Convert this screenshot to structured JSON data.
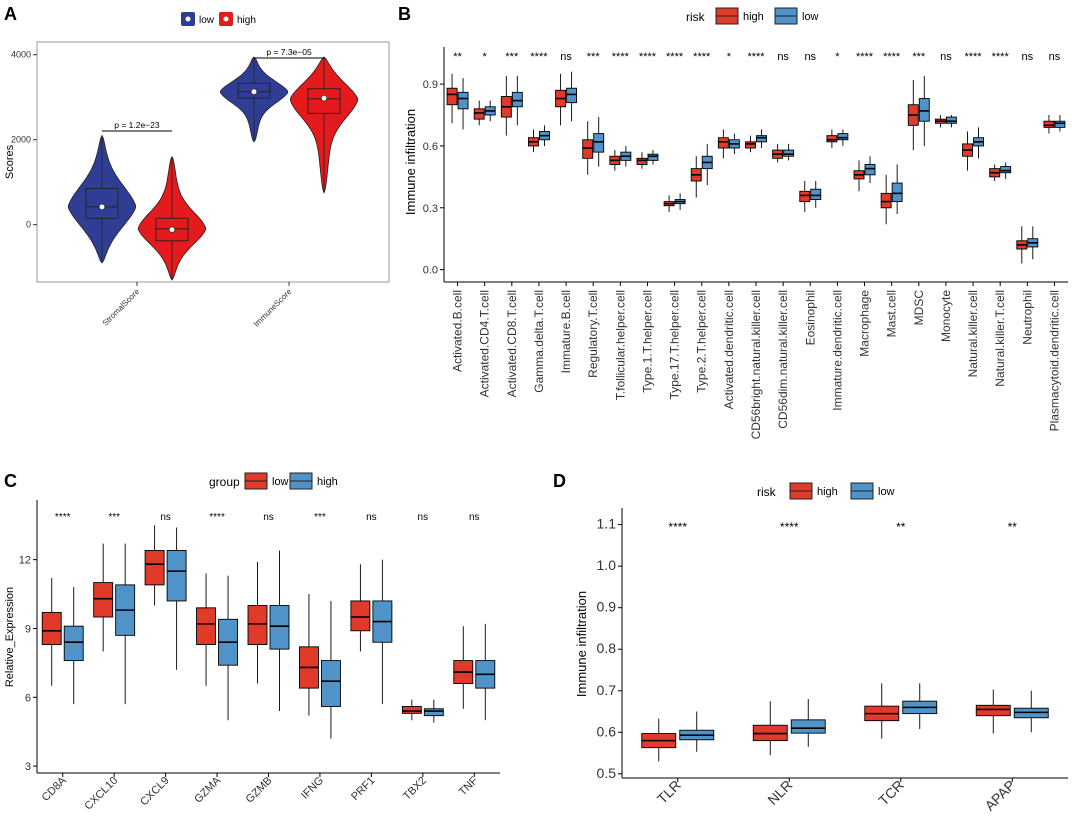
{
  "colors": {
    "violin_low": "#2f3e94",
    "violin_high": "#e41a1c",
    "box_red": "#e03a2b",
    "box_blue": "#4f93c8"
  },
  "panelA": {
    "letter": "A",
    "legend": [
      "low",
      "high"
    ],
    "ylabel": "Scores",
    "ylim": [
      -1350,
      4300
    ],
    "yticks": [
      "0",
      "2000",
      "4000"
    ],
    "categories": [
      "StromalScore",
      "ImmuneScore"
    ],
    "pvalues": [
      "p = 1.2e−23",
      "p = 7.3e−05"
    ],
    "groups": [
      {
        "category": "StromalScore",
        "group": "low",
        "min": -900,
        "q1": 150,
        "median": 420,
        "q3": 850,
        "max": 2100,
        "mean": 420
      },
      {
        "category": "StromalScore",
        "group": "high",
        "min": -1300,
        "q1": -380,
        "median": -100,
        "q3": 150,
        "max": 1600,
        "mean": -120
      },
      {
        "category": "ImmuneScore",
        "group": "low",
        "min": 1950,
        "q1": 2980,
        "median": 3130,
        "q3": 3330,
        "max": 3950,
        "mean": 3130
      },
      {
        "category": "ImmuneScore",
        "group": "high",
        "min": 750,
        "q1": 2620,
        "median": 2960,
        "q3": 3200,
        "max": 3950,
        "mean": 2980
      }
    ]
  },
  "panelB": {
    "letter": "B",
    "legend_title": "risk",
    "legend": [
      "high",
      "low"
    ],
    "ylabel": "Immune infiltration",
    "ylim": [
      -0.06,
      1.08
    ],
    "yticks": [
      "0.0",
      "0.3",
      "0.6",
      "0.9"
    ],
    "categories": [
      "Activated.B.cell",
      "Activated.CD4.T.cell",
      "Activated.CD8.T.cell",
      "Gamma.delta.T.cell",
      "Immature.B.cell",
      "Regulatory.T.cell",
      "T.follicular.helper.cell",
      "Type.1.T.helper.cell",
      "Type.17.T.helper.cell",
      "Type.2.T.helper.cell",
      "Activated.dendritic.cell",
      "CD56bright.natural.killer.cell",
      "CD56dim.natural.killer.cell",
      "Eosinophil",
      "Immature.dendritic.cell",
      "Macrophage",
      "Mast.cell",
      "MDSC",
      "Monocyte",
      "Natural.killer.cell",
      "Natural.killer.T.cell",
      "Neutrophil",
      "Plasmacytoid.dendritic.cell"
    ],
    "significance": [
      "**",
      "*",
      "***",
      "****",
      "ns",
      "***",
      "****",
      "****",
      "****",
      "****",
      "*",
      "****",
      "ns",
      "ns",
      "*",
      "****",
      "****",
      "***",
      "ns",
      "****",
      "****",
      "ns",
      "ns"
    ],
    "series": [
      {
        "name": "high",
        "boxes": [
          [
            0.71,
            0.8,
            0.85,
            0.88,
            0.95
          ],
          [
            0.7,
            0.73,
            0.76,
            0.78,
            0.82
          ],
          [
            0.65,
            0.74,
            0.79,
            0.84,
            0.94
          ],
          [
            0.57,
            0.6,
            0.62,
            0.64,
            0.68
          ],
          [
            0.7,
            0.79,
            0.83,
            0.87,
            0.95
          ],
          [
            0.46,
            0.54,
            0.59,
            0.63,
            0.72
          ],
          [
            0.48,
            0.51,
            0.53,
            0.55,
            0.58
          ],
          [
            0.49,
            0.51,
            0.53,
            0.54,
            0.57
          ],
          [
            0.28,
            0.31,
            0.32,
            0.33,
            0.36
          ],
          [
            0.35,
            0.43,
            0.46,
            0.49,
            0.55
          ],
          [
            0.54,
            0.59,
            0.62,
            0.64,
            0.68
          ],
          [
            0.57,
            0.59,
            0.61,
            0.62,
            0.65
          ],
          [
            0.52,
            0.54,
            0.56,
            0.58,
            0.61
          ],
          [
            0.28,
            0.33,
            0.36,
            0.38,
            0.43
          ],
          [
            0.59,
            0.62,
            0.63,
            0.65,
            0.68
          ],
          [
            0.38,
            0.44,
            0.46,
            0.48,
            0.53
          ],
          [
            0.22,
            0.3,
            0.33,
            0.37,
            0.46
          ],
          [
            0.58,
            0.7,
            0.75,
            0.8,
            0.92
          ],
          [
            0.69,
            0.71,
            0.72,
            0.73,
            0.75
          ],
          [
            0.48,
            0.55,
            0.58,
            0.61,
            0.67
          ],
          [
            0.43,
            0.45,
            0.47,
            0.49,
            0.51
          ],
          [
            0.03,
            0.1,
            0.12,
            0.14,
            0.21
          ],
          [
            0.66,
            0.69,
            0.7,
            0.72,
            0.75
          ]
        ]
      },
      {
        "name": "low",
        "boxes": [
          [
            0.68,
            0.78,
            0.83,
            0.86,
            0.93
          ],
          [
            0.72,
            0.75,
            0.77,
            0.79,
            0.82
          ],
          [
            0.7,
            0.79,
            0.82,
            0.86,
            0.94
          ],
          [
            0.6,
            0.63,
            0.65,
            0.67,
            0.7
          ],
          [
            0.72,
            0.81,
            0.85,
            0.88,
            0.96
          ],
          [
            0.5,
            0.57,
            0.62,
            0.66,
            0.74
          ],
          [
            0.5,
            0.53,
            0.55,
            0.57,
            0.6
          ],
          [
            0.51,
            0.53,
            0.55,
            0.56,
            0.58
          ],
          [
            0.29,
            0.32,
            0.33,
            0.34,
            0.37
          ],
          [
            0.41,
            0.49,
            0.52,
            0.55,
            0.61
          ],
          [
            0.56,
            0.59,
            0.61,
            0.63,
            0.66
          ],
          [
            0.59,
            0.62,
            0.64,
            0.65,
            0.68
          ],
          [
            0.53,
            0.55,
            0.56,
            0.58,
            0.61
          ],
          [
            0.3,
            0.34,
            0.36,
            0.39,
            0.43
          ],
          [
            0.6,
            0.63,
            0.64,
            0.66,
            0.68
          ],
          [
            0.42,
            0.46,
            0.49,
            0.51,
            0.55
          ],
          [
            0.27,
            0.33,
            0.37,
            0.42,
            0.51
          ],
          [
            0.6,
            0.72,
            0.77,
            0.83,
            0.94
          ],
          [
            0.69,
            0.71,
            0.72,
            0.74,
            0.75
          ],
          [
            0.54,
            0.6,
            0.62,
            0.64,
            0.69
          ],
          [
            0.44,
            0.47,
            0.48,
            0.5,
            0.52
          ],
          [
            0.05,
            0.11,
            0.13,
            0.15,
            0.21
          ],
          [
            0.67,
            0.69,
            0.71,
            0.72,
            0.75
          ]
        ]
      }
    ]
  },
  "panelC": {
    "letter": "C",
    "legend_title": "group",
    "legend": [
      "low",
      "high"
    ],
    "ylabel": "Relative_Expression",
    "ylim": [
      2.7,
      14.6
    ],
    "yticks": [
      "3",
      "6",
      "9",
      "12"
    ],
    "categories": [
      "CD8A",
      "CXCL10",
      "CXCL9",
      "GZMA",
      "GZMB",
      "IFNG",
      "PRF1",
      "TBX2",
      "TNF"
    ],
    "significance": [
      "****",
      "***",
      "ns",
      "****",
      "ns",
      "***",
      "ns",
      "ns",
      "ns"
    ],
    "series": [
      {
        "name": "low",
        "boxes": [
          [
            6.5,
            8.3,
            8.9,
            9.7,
            11.2
          ],
          [
            8.0,
            9.5,
            10.3,
            11.0,
            12.7
          ],
          [
            10.0,
            10.9,
            11.8,
            12.4,
            13.5
          ],
          [
            6.5,
            8.3,
            9.2,
            9.9,
            11.4
          ],
          [
            6.6,
            8.3,
            9.2,
            10.0,
            11.9
          ],
          [
            5.2,
            6.4,
            7.3,
            8.2,
            10.5
          ],
          [
            8.0,
            8.9,
            9.5,
            10.2,
            11.8
          ],
          [
            5.0,
            5.3,
            5.4,
            5.6,
            5.9
          ],
          [
            5.5,
            6.6,
            7.1,
            7.6,
            9.1
          ]
        ]
      },
      {
        "name": "high",
        "boxes": [
          [
            5.7,
            7.6,
            8.4,
            9.1,
            10.8
          ],
          [
            5.7,
            8.7,
            9.8,
            10.9,
            12.7
          ],
          [
            7.2,
            10.2,
            11.5,
            12.4,
            13.4
          ],
          [
            5.0,
            7.4,
            8.4,
            9.4,
            11.3
          ],
          [
            5.4,
            8.1,
            9.1,
            10.0,
            12.4
          ],
          [
            4.2,
            5.6,
            6.7,
            7.6,
            10.2
          ],
          [
            5.7,
            8.4,
            9.3,
            10.2,
            12.0
          ],
          [
            4.9,
            5.2,
            5.4,
            5.5,
            5.9
          ],
          [
            5.0,
            6.4,
            7.0,
            7.6,
            9.2
          ]
        ]
      }
    ]
  },
  "panelD": {
    "letter": "D",
    "legend_title": "risk",
    "legend": [
      "high",
      "low"
    ],
    "ylabel": "Immune infiltration",
    "ylim": [
      0.49,
      1.14
    ],
    "yticks": [
      "0.5",
      "0.6",
      "0.7",
      "0.8",
      "0.9",
      "1.0",
      "1.1"
    ],
    "categories": [
      "TLR",
      "NLR",
      "TCR",
      "APAP"
    ],
    "significance": [
      "****",
      "****",
      "**",
      "**"
    ],
    "series": [
      {
        "name": "high",
        "boxes": [
          [
            0.53,
            0.563,
            0.58,
            0.597,
            0.633
          ],
          [
            0.545,
            0.58,
            0.597,
            0.617,
            0.675
          ],
          [
            0.585,
            0.628,
            0.645,
            0.663,
            0.718
          ],
          [
            0.597,
            0.64,
            0.655,
            0.665,
            0.703
          ]
        ]
      },
      {
        "name": "low",
        "boxes": [
          [
            0.553,
            0.582,
            0.593,
            0.605,
            0.65
          ],
          [
            0.565,
            0.598,
            0.61,
            0.63,
            0.68
          ],
          [
            0.608,
            0.645,
            0.66,
            0.675,
            0.718
          ],
          [
            0.6,
            0.635,
            0.648,
            0.658,
            0.7
          ]
        ]
      }
    ]
  }
}
